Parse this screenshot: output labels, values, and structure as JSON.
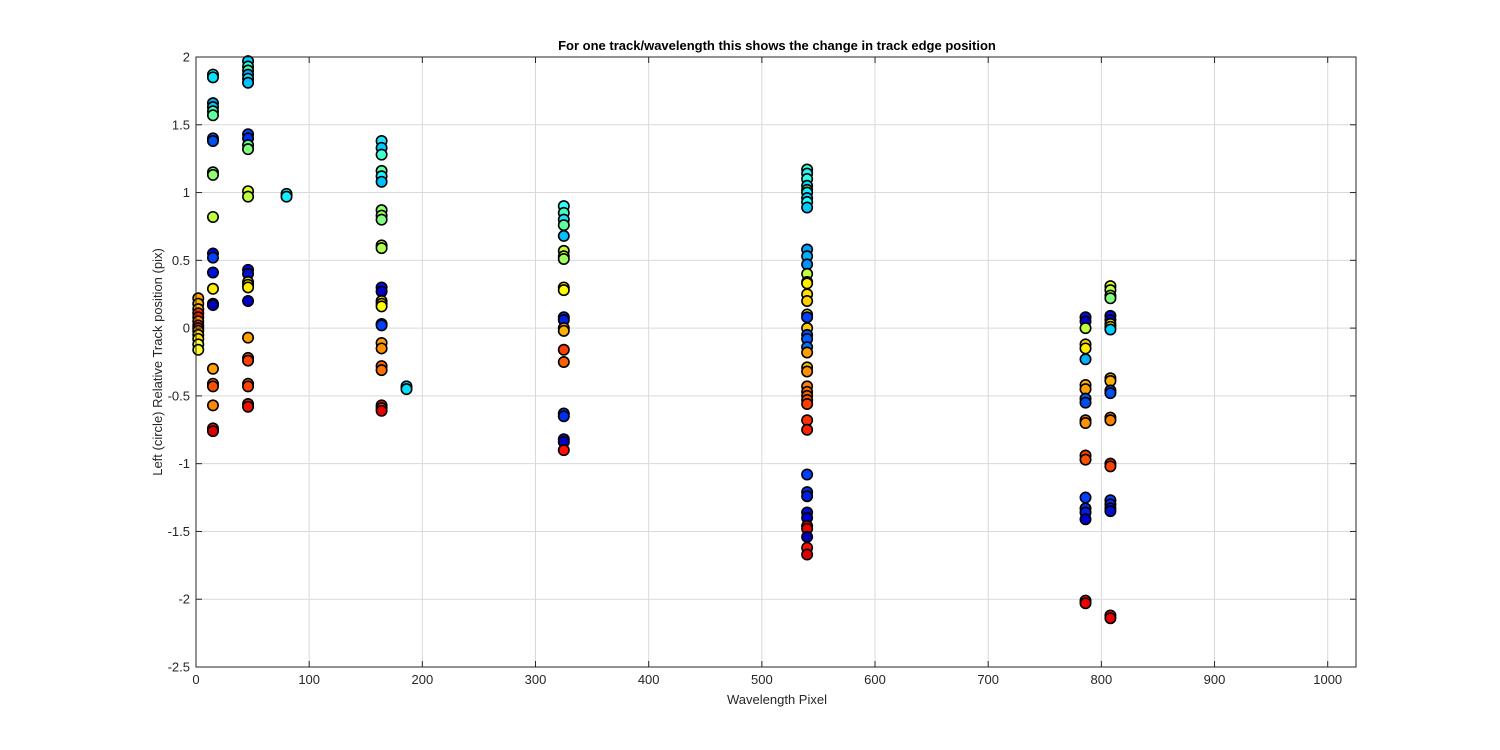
{
  "chart_data": {
    "type": "scatter",
    "title": "For one track/wavelength this shows the change in track edge position",
    "xlabel": "Wavelength Pixel",
    "ylabel": "Left (circle) Relative Track position (pix)",
    "xlim": [
      0,
      1025
    ],
    "ylim": [
      -2.5,
      2
    ],
    "xticks": [
      0,
      100,
      200,
      300,
      400,
      500,
      600,
      700,
      800,
      900,
      1000
    ],
    "yticks": [
      -2.5,
      -2,
      -1.5,
      -1,
      -0.5,
      0,
      0.5,
      1,
      1.5,
      2
    ],
    "xtick_labels": [
      "0",
      "100",
      "200",
      "300",
      "400",
      "500",
      "600",
      "700",
      "800",
      "900",
      "1000"
    ],
    "ytick_labels": [
      "-2.5",
      "-2",
      "-1.5",
      "-1",
      "-0.5",
      "0",
      "0.5",
      "1",
      "1.5",
      "2"
    ],
    "grid": true,
    "marker": "circle",
    "colormap": "jet",
    "groups": [
      {
        "x": 2,
        "points": [
          [
            0.22,
            "#ffa500"
          ],
          [
            0.18,
            "#ffb000"
          ],
          [
            0.14,
            "#ffc000"
          ],
          [
            0.11,
            "#ff2a00"
          ],
          [
            0.08,
            "#ff1a00"
          ],
          [
            0.05,
            "#ff8c00"
          ],
          [
            0.02,
            "#ff4000"
          ],
          [
            0.0,
            "#ff2000"
          ],
          [
            -0.02,
            "#ffa000"
          ],
          [
            -0.05,
            "#ffd000"
          ],
          [
            -0.08,
            "#ffe000"
          ],
          [
            -0.12,
            "#ffff40"
          ],
          [
            -0.16,
            "#ffff30"
          ]
        ]
      },
      {
        "x": 15,
        "points": [
          [
            1.87,
            "#1affff"
          ],
          [
            1.85,
            "#00e5ff"
          ],
          [
            1.66,
            "#00aadd"
          ],
          [
            1.63,
            "#00c8ff"
          ],
          [
            1.6,
            "#40ffc0"
          ],
          [
            1.57,
            "#60ffa0"
          ],
          [
            1.4,
            "#0060ff"
          ],
          [
            1.38,
            "#0050ee"
          ],
          [
            1.15,
            "#80ff80"
          ],
          [
            1.13,
            "#90ff70"
          ],
          [
            0.82,
            "#c0ff40"
          ],
          [
            0.55,
            "#0000ee"
          ],
          [
            0.52,
            "#0040ff"
          ],
          [
            0.41,
            "#0010dd"
          ],
          [
            0.29,
            "#ffee00"
          ],
          [
            0.18,
            "#0010cc"
          ],
          [
            0.17,
            "#0000bb"
          ],
          [
            -0.3,
            "#ffa000"
          ],
          [
            -0.41,
            "#ff7000"
          ],
          [
            -0.43,
            "#ff5000"
          ],
          [
            -0.57,
            "#ff8800"
          ],
          [
            -0.74,
            "#ff1000"
          ],
          [
            -0.76,
            "#dd0000"
          ]
        ]
      },
      {
        "x": 46,
        "points": [
          [
            1.97,
            "#00ccff"
          ],
          [
            1.93,
            "#20ffe0"
          ],
          [
            1.9,
            "#40ffc0"
          ],
          [
            1.87,
            "#00aaff"
          ],
          [
            1.84,
            "#10e0ff"
          ],
          [
            1.81,
            "#00c0ff"
          ],
          [
            1.43,
            "#0040ff"
          ],
          [
            1.4,
            "#0030ee"
          ],
          [
            1.35,
            "#60ff90"
          ],
          [
            1.32,
            "#80ff80"
          ],
          [
            1.01,
            "#e0ff20"
          ],
          [
            0.97,
            "#c0ff40"
          ],
          [
            0.43,
            "#0000ee"
          ],
          [
            0.4,
            "#0010cc"
          ],
          [
            0.34,
            "#ffff00"
          ],
          [
            0.32,
            "#ffd000"
          ],
          [
            0.3,
            "#ffee00"
          ],
          [
            0.2,
            "#0000cc"
          ],
          [
            -0.07,
            "#ffa000"
          ],
          [
            -0.22,
            "#ff5000"
          ],
          [
            -0.24,
            "#ff4000"
          ],
          [
            -0.41,
            "#ff6000"
          ],
          [
            -0.43,
            "#ff4400"
          ],
          [
            -0.56,
            "#ff2000"
          ],
          [
            -0.58,
            "#ee1000"
          ]
        ]
      },
      {
        "x": 80,
        "points": [
          [
            0.99,
            "#20ffff"
          ],
          [
            0.97,
            "#10f0ff"
          ]
        ]
      },
      {
        "x": 164,
        "points": [
          [
            1.38,
            "#20e0ff"
          ],
          [
            1.33,
            "#00ccff"
          ],
          [
            1.28,
            "#40ffd0"
          ],
          [
            1.16,
            "#60ffa0"
          ],
          [
            1.12,
            "#20f0ff"
          ],
          [
            1.08,
            "#00c0ff"
          ],
          [
            0.87,
            "#90ff70"
          ],
          [
            0.83,
            "#a0ff60"
          ],
          [
            0.8,
            "#80ff80"
          ],
          [
            0.61,
            "#c0ff40"
          ],
          [
            0.59,
            "#b0ff50"
          ],
          [
            0.3,
            "#0010ee"
          ],
          [
            0.27,
            "#0000cc"
          ],
          [
            0.2,
            "#ffe000"
          ],
          [
            0.18,
            "#ffd000"
          ],
          [
            0.16,
            "#ffff00"
          ],
          [
            0.03,
            "#0030ff"
          ],
          [
            0.02,
            "#0040ff"
          ],
          [
            -0.11,
            "#ffa000"
          ],
          [
            -0.15,
            "#ff9000"
          ],
          [
            -0.28,
            "#ff6000"
          ],
          [
            -0.31,
            "#ff7000"
          ],
          [
            -0.57,
            "#ff2000"
          ],
          [
            -0.59,
            "#ff4000"
          ],
          [
            -0.61,
            "#ee0000"
          ]
        ]
      },
      {
        "x": 186,
        "points": [
          [
            -0.43,
            "#00d0ff"
          ],
          [
            -0.45,
            "#00e0ff"
          ]
        ]
      },
      {
        "x": 325,
        "points": [
          [
            0.9,
            "#30ffff"
          ],
          [
            0.85,
            "#40ffc0"
          ],
          [
            0.8,
            "#20e0ff"
          ],
          [
            0.76,
            "#60ffa0"
          ],
          [
            0.68,
            "#00c0ff"
          ],
          [
            0.57,
            "#c0ff40"
          ],
          [
            0.53,
            "#e0ff20"
          ],
          [
            0.51,
            "#a0ff60"
          ],
          [
            0.3,
            "#ffd000"
          ],
          [
            0.28,
            "#ffff00"
          ],
          [
            0.08,
            "#0030ff"
          ],
          [
            0.06,
            "#0020dd"
          ],
          [
            0.0,
            "#ffa000"
          ],
          [
            -0.02,
            "#ffb000"
          ],
          [
            -0.16,
            "#ff4000"
          ],
          [
            -0.25,
            "#ff6000"
          ],
          [
            -0.63,
            "#0040ff"
          ],
          [
            -0.65,
            "#0030ee"
          ],
          [
            -0.82,
            "#0010dd"
          ],
          [
            -0.84,
            "#0000cc"
          ],
          [
            -0.9,
            "#ff1000"
          ]
        ]
      },
      {
        "x": 540,
        "points": [
          [
            1.17,
            "#40ffd0"
          ],
          [
            1.14,
            "#20f0ff"
          ],
          [
            1.1,
            "#30ffe0"
          ],
          [
            1.05,
            "#00e0ff"
          ],
          [
            1.02,
            "#60ffa0"
          ],
          [
            1.0,
            "#10f0ff"
          ],
          [
            0.96,
            "#00d0ff"
          ],
          [
            0.93,
            "#20ffff"
          ],
          [
            0.89,
            "#00ccff"
          ],
          [
            0.58,
            "#00a0ff"
          ],
          [
            0.53,
            "#00b0ff"
          ],
          [
            0.47,
            "#0090ff"
          ],
          [
            0.4,
            "#c0ff40"
          ],
          [
            0.34,
            "#e0ff20"
          ],
          [
            0.33,
            "#ffee00"
          ],
          [
            0.25,
            "#ffe000"
          ],
          [
            0.2,
            "#ffd000"
          ],
          [
            0.1,
            "#ffff00"
          ],
          [
            0.08,
            "#0040ff"
          ],
          [
            0.0,
            "#ffcc00"
          ],
          [
            -0.05,
            "#0050ff"
          ],
          [
            -0.08,
            "#0060ff"
          ],
          [
            -0.14,
            "#0070ff"
          ],
          [
            -0.18,
            "#ffa000"
          ],
          [
            -0.29,
            "#ffc000"
          ],
          [
            -0.32,
            "#ff9000"
          ],
          [
            -0.43,
            "#ff8000"
          ],
          [
            -0.47,
            "#ff7000"
          ],
          [
            -0.5,
            "#ff6000"
          ],
          [
            -0.53,
            "#ff5000"
          ],
          [
            -0.56,
            "#ff4000"
          ],
          [
            -0.68,
            "#ff3000"
          ],
          [
            -0.75,
            "#ff2000"
          ],
          [
            -1.08,
            "#0040ff"
          ],
          [
            -1.21,
            "#0030ee"
          ],
          [
            -1.24,
            "#0020dd"
          ],
          [
            -1.36,
            "#0010cc"
          ],
          [
            -1.4,
            "#0000cc"
          ],
          [
            -1.46,
            "#ff0000"
          ],
          [
            -1.48,
            "#ee0000"
          ],
          [
            -1.54,
            "#0000bb"
          ],
          [
            -1.62,
            "#ff1000"
          ],
          [
            -1.67,
            "#dd0000"
          ]
        ]
      },
      {
        "x": 786,
        "points": [
          [
            0.08,
            "#0010dd"
          ],
          [
            0.05,
            "#0000cc"
          ],
          [
            0.0,
            "#c0ff40"
          ],
          [
            -0.12,
            "#ffd000"
          ],
          [
            -0.15,
            "#ffee00"
          ],
          [
            -0.23,
            "#00b0ff"
          ],
          [
            -0.42,
            "#ffb000"
          ],
          [
            -0.45,
            "#ffa000"
          ],
          [
            -0.52,
            "#0060ff"
          ],
          [
            -0.55,
            "#0050ee"
          ],
          [
            -0.68,
            "#ff8000"
          ],
          [
            -0.7,
            "#ff9000"
          ],
          [
            -0.94,
            "#ff4000"
          ],
          [
            -0.97,
            "#ff5000"
          ],
          [
            -1.25,
            "#0040ff"
          ],
          [
            -1.33,
            "#0030ee"
          ],
          [
            -1.36,
            "#0020dd"
          ],
          [
            -1.41,
            "#0000cc"
          ],
          [
            -2.01,
            "#ff1000"
          ],
          [
            -2.03,
            "#ee0000"
          ]
        ]
      },
      {
        "x": 808,
        "points": [
          [
            0.31,
            "#e0ff20"
          ],
          [
            0.28,
            "#c0ff40"
          ],
          [
            0.24,
            "#a0ff60"
          ],
          [
            0.22,
            "#80ff80"
          ],
          [
            0.09,
            "#0010dd"
          ],
          [
            0.06,
            "#0000cc"
          ],
          [
            0.03,
            "#ffff00"
          ],
          [
            0.01,
            "#ffe000"
          ],
          [
            -0.01,
            "#00d0ff"
          ],
          [
            -0.37,
            "#ffa000"
          ],
          [
            -0.39,
            "#ffb000"
          ],
          [
            -0.46,
            "#0060ff"
          ],
          [
            -0.48,
            "#0050ee"
          ],
          [
            -0.66,
            "#ff7000"
          ],
          [
            -0.68,
            "#ff8000"
          ],
          [
            -1.0,
            "#ff3000"
          ],
          [
            -1.02,
            "#ff4000"
          ],
          [
            -1.27,
            "#0040ff"
          ],
          [
            -1.3,
            "#0030ee"
          ],
          [
            -1.33,
            "#0020dd"
          ],
          [
            -1.35,
            "#0010cc"
          ],
          [
            -2.12,
            "#ff1000"
          ],
          [
            -2.14,
            "#ee0000"
          ]
        ]
      }
    ]
  }
}
